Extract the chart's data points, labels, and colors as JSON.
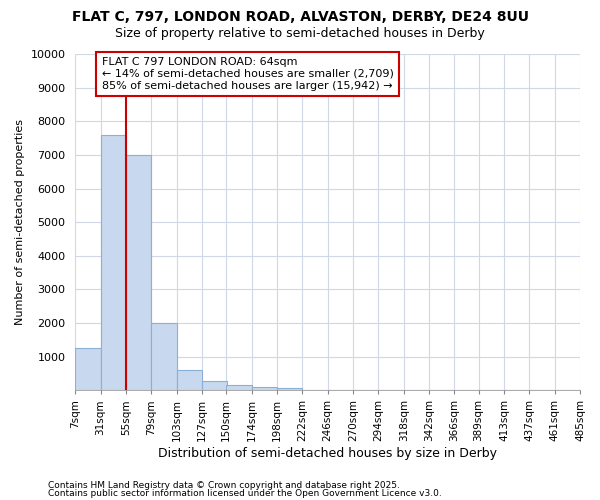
{
  "title": "FLAT C, 797, LONDON ROAD, ALVASTON, DERBY, DE24 8UU",
  "subtitle": "Size of property relative to semi-detached houses in Derby",
  "xlabel": "Distribution of semi-detached houses by size in Derby",
  "ylabel": "Number of semi-detached properties",
  "property_label": "FLAT C 797 LONDON ROAD: 64sqm",
  "annotation_text_1": "← 14% of semi-detached houses are smaller (2,709)",
  "annotation_text_2": "85% of semi-detached houses are larger (15,942) →",
  "bar_color": "#c8d8ee",
  "bar_edge_color": "#8ab0d8",
  "vline_color": "#cc0000",
  "annotation_box_color": "#cc0000",
  "bin_edges": [
    7,
    31,
    55,
    79,
    103,
    127,
    150,
    174,
    198,
    222,
    246,
    270,
    294,
    318,
    342,
    366,
    389,
    413,
    437,
    461,
    485
  ],
  "bin_labels": [
    "7sqm",
    "31sqm",
    "55sqm",
    "79sqm",
    "103sqm",
    "127sqm",
    "150sqm",
    "174sqm",
    "198sqm",
    "222sqm",
    "246sqm",
    "270sqm",
    "294sqm",
    "318sqm",
    "342sqm",
    "366sqm",
    "389sqm",
    "413sqm",
    "437sqm",
    "461sqm",
    "485sqm"
  ],
  "bar_heights": [
    1250,
    7600,
    7000,
    2000,
    600,
    280,
    150,
    100,
    60,
    0,
    0,
    0,
    0,
    0,
    0,
    0,
    0,
    0,
    0,
    0
  ],
  "vline_x_index": 2,
  "ylim": [
    0,
    10000
  ],
  "yticks": [
    0,
    1000,
    2000,
    3000,
    4000,
    5000,
    6000,
    7000,
    8000,
    9000,
    10000
  ],
  "footnote1": "Contains HM Land Registry data © Crown copyright and database right 2025.",
  "footnote2": "Contains public sector information licensed under the Open Government Licence v3.0.",
  "background_color": "#ffffff",
  "plot_bg_color": "#ffffff",
  "grid_color": "#d0d8e8"
}
